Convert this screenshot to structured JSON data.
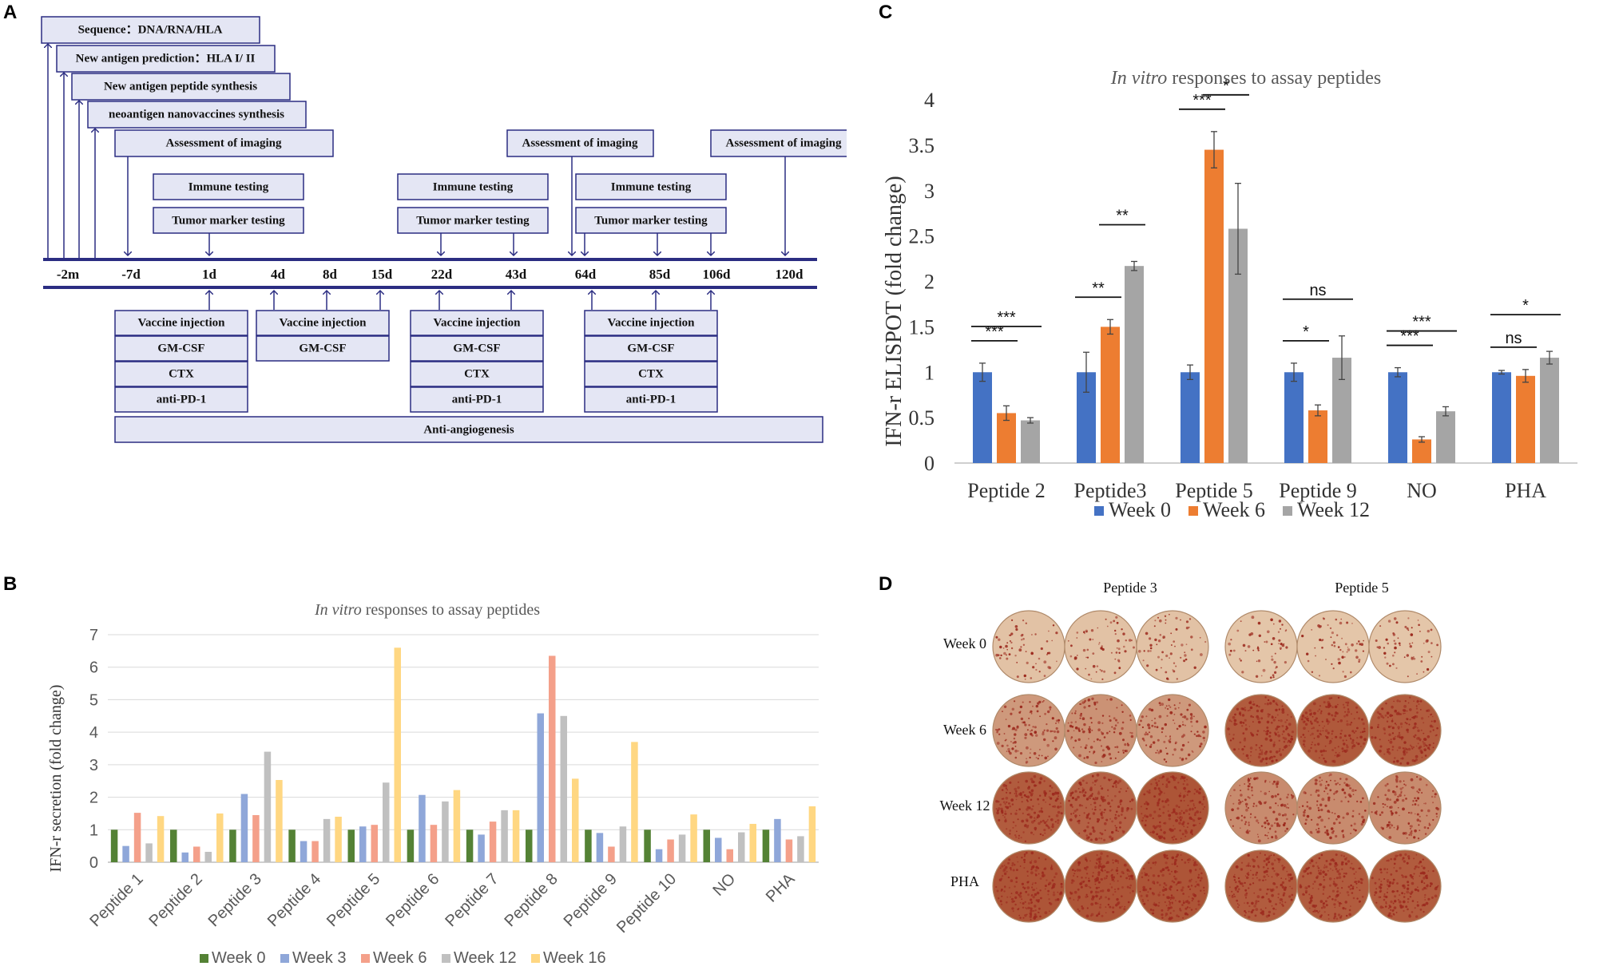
{
  "panels": {
    "a": "A",
    "b": "B",
    "c": "C",
    "d": "D"
  },
  "timeline": {
    "top_boxes": [
      "Sequence：DNA/RNA/HLA",
      "New antigen prediction：HLA I/ II",
      "New antigen peptide synthesis",
      "neoantigen nanovaccines synthesis",
      "Assessment of imaging"
    ],
    "assessment_label": "Assessment of imaging",
    "immune_label": "Immune testing",
    "tumor_label": "Tumor marker testing",
    "days": [
      "-2m",
      "-7d",
      "1d",
      "4d",
      "8d",
      "15d",
      "22d",
      "43d",
      "64d",
      "85d",
      "106d",
      "120d"
    ],
    "vaccine_label": "Vaccine injection",
    "gmcsf_label": "GM-CSF",
    "ctx_label": "CTX",
    "pd1_label": "anti-PD-1",
    "anti_angio_label": "Anti-angiogenesis"
  },
  "chart_data": [
    {
      "id": "B",
      "type": "bar",
      "title_italic": "In vitro",
      "title_rest": " responses to assay peptides",
      "ylabel": "IFN-r secretion (fold change)",
      "xlabel": "",
      "ylim": [
        0,
        7
      ],
      "yticks": [
        "0",
        "1",
        "2",
        "3",
        "4",
        "5",
        "6",
        "7"
      ],
      "grid": true,
      "legend": "bottom",
      "categories": [
        "Peptide 1",
        "Peptide 2",
        "Peptide 3",
        "Peptide 4",
        "Peptide 5",
        "Peptide 6",
        "Peptide 7",
        "Peptide 8",
        "Peptide 9",
        "Peptide 10",
        "NO",
        "PHA"
      ],
      "series": [
        {
          "name": "Week 0",
          "color": "#548235",
          "values": [
            1,
            1,
            1,
            1,
            1,
            1,
            1,
            1,
            1,
            1,
            1,
            1
          ]
        },
        {
          "name": "Week 3",
          "color": "#8fa7d9",
          "values": [
            0.5,
            0.3,
            2.1,
            0.65,
            1.1,
            2.07,
            0.85,
            4.58,
            0.9,
            0.4,
            0.75,
            1.33
          ]
        },
        {
          "name": "Week 6",
          "color": "#f4a08a",
          "values": [
            1.52,
            0.48,
            1.45,
            0.65,
            1.15,
            1.15,
            1.25,
            6.35,
            0.48,
            0.7,
            0.4,
            0.7
          ]
        },
        {
          "name": "Week 12",
          "color": "#c0c0c0",
          "values": [
            0.58,
            0.32,
            3.4,
            1.33,
            2.45,
            1.87,
            1.6,
            4.5,
            1.1,
            0.85,
            0.92,
            0.8
          ]
        },
        {
          "name": "Week 16",
          "color": "#ffd782",
          "values": [
            1.42,
            1.5,
            2.53,
            1.4,
            6.6,
            2.22,
            1.6,
            2.57,
            3.7,
            1.47,
            1.18,
            1.72
          ]
        }
      ]
    },
    {
      "id": "C",
      "type": "bar",
      "title_italic": "In vitro",
      "title_rest": " responses to assay peptides",
      "ylabel": "IFN-r ELISPOT (fold change)",
      "xlabel": "",
      "ylim": [
        0,
        4
      ],
      "yticks": [
        "0",
        "0.5",
        "1",
        "1.5",
        "2",
        "2.5",
        "3",
        "3.5",
        "4"
      ],
      "grid": false,
      "legend": "bottom",
      "categories": [
        "Peptide 2",
        "Peptide3",
        "Peptide 5",
        "Peptide 9",
        "NO",
        "PHA"
      ],
      "series": [
        {
          "name": "Week 0",
          "color": "#4472c4",
          "values": [
            1,
            1,
            1,
            1,
            1,
            1
          ],
          "errors": [
            0.1,
            0.22,
            0.08,
            0.1,
            0.05,
            0.02
          ]
        },
        {
          "name": "Week 6",
          "color": "#ed7d31",
          "values": [
            0.55,
            1.5,
            3.45,
            0.58,
            0.26,
            0.96
          ],
          "errors": [
            0.08,
            0.08,
            0.2,
            0.06,
            0.03,
            0.07
          ]
        },
        {
          "name": "Week 12",
          "color": "#a5a5a5",
          "values": [
            0.47,
            2.17,
            2.58,
            1.16,
            0.57,
            1.16
          ],
          "errors": [
            0.03,
            0.05,
            0.5,
            0.24,
            0.05,
            0.07
          ]
        }
      ],
      "significance": [
        {
          "category": "Peptide 2",
          "pair": [
            "Week 0",
            "Week 6"
          ],
          "label": "***"
        },
        {
          "category": "Peptide 2",
          "pair": [
            "Week 0",
            "Week 12"
          ],
          "label": "***"
        },
        {
          "category": "Peptide3",
          "pair": [
            "Week 0",
            "Week 6"
          ],
          "label": "**"
        },
        {
          "category": "Peptide3",
          "pair": [
            "Week 6",
            "Week 12"
          ],
          "label": "**"
        },
        {
          "category": "Peptide 5",
          "pair": [
            "Week 0",
            "Week 6"
          ],
          "label": "***"
        },
        {
          "category": "Peptide 5",
          "pair": [
            "Week 6",
            "Week 12"
          ],
          "label": "*"
        },
        {
          "category": "Peptide 9",
          "pair": [
            "Week 0",
            "Week 6"
          ],
          "label": "*"
        },
        {
          "category": "Peptide 9",
          "pair": [
            "Week 0",
            "Week 12"
          ],
          "label": "ns"
        },
        {
          "category": "NO",
          "pair": [
            "Week 0",
            "Week 6"
          ],
          "label": "***"
        },
        {
          "category": "NO",
          "pair": [
            "Week 0",
            "Week 12"
          ],
          "label": "***"
        },
        {
          "category": "PHA",
          "pair": [
            "Week 0",
            "Week 6"
          ],
          "label": "ns"
        },
        {
          "category": "PHA",
          "pair": [
            "Week 0",
            "Week 12"
          ],
          "label": "*"
        }
      ]
    }
  ],
  "elispot": {
    "col_labels": [
      "Peptide 3",
      "Peptide 5"
    ],
    "row_labels": [
      "Week 0",
      "Week 6",
      "Week 12",
      "PHA"
    ],
    "spot_density": [
      [
        0.15,
        0.15,
        0.15,
        0.12,
        0.12,
        0.12
      ],
      [
        0.45,
        0.5,
        0.45,
        0.9,
        0.92,
        0.9
      ],
      [
        0.9,
        0.85,
        0.95,
        0.55,
        0.55,
        0.55
      ],
      [
        0.95,
        0.95,
        0.95,
        0.9,
        0.9,
        0.9
      ]
    ]
  }
}
